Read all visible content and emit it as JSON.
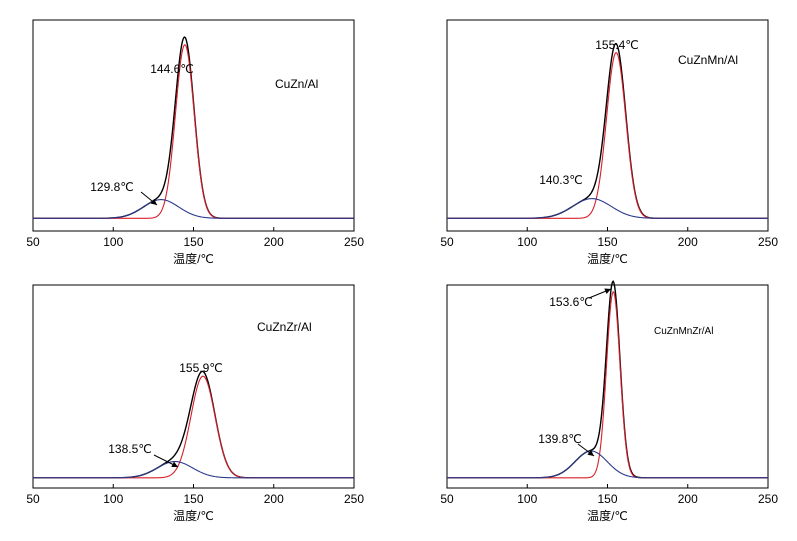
{
  "chart_data": [
    {
      "type": "line",
      "label": "CuZn/Al",
      "xlabel": "温度/℃",
      "xlim": [
        50,
        250
      ],
      "xticks": [
        50,
        100,
        150,
        200,
        250
      ],
      "grid": false,
      "series": [
        {
          "color": "#000000",
          "curve": "sum",
          "peaks": [
            {
              "center": 144.6,
              "height": 0.88,
              "sigma": 5.8
            },
            {
              "center": 129.8,
              "height": 0.095,
              "sigma": 11.0
            }
          ]
        },
        {
          "color": "#d81e2a",
          "curve": "component",
          "peaks": [
            {
              "center": 144.6,
              "height": 0.88,
              "sigma": 5.8
            }
          ]
        },
        {
          "color": "#2b3a8c",
          "curve": "component",
          "peaks": [
            {
              "center": 129.8,
              "height": 0.095,
              "sigma": 11.0
            }
          ]
        }
      ],
      "annotations": [
        {
          "text": "144.6℃",
          "x": 144.6,
          "arrow": false
        },
        {
          "text": "129.8℃",
          "x": 129.8,
          "arrow": true
        }
      ]
    },
    {
      "type": "line",
      "label": "CuZnMn/Al",
      "xlabel": "温度/℃",
      "xlim": [
        50,
        250
      ],
      "xticks": [
        50,
        100,
        150,
        200,
        250
      ],
      "grid": false,
      "series": [
        {
          "color": "#000000",
          "curve": "sum",
          "peaks": [
            {
              "center": 155.4,
              "height": 0.84,
              "sigma": 6.0
            },
            {
              "center": 140.3,
              "height": 0.1,
              "sigma": 12.0
            }
          ]
        },
        {
          "color": "#d81e2a",
          "curve": "component",
          "peaks": [
            {
              "center": 155.4,
              "height": 0.84,
              "sigma": 6.0
            }
          ]
        },
        {
          "color": "#2b3a8c",
          "curve": "component",
          "peaks": [
            {
              "center": 140.3,
              "height": 0.1,
              "sigma": 12.0
            }
          ]
        }
      ],
      "annotations": [
        {
          "text": "155.4℃",
          "x": 155.4,
          "arrow": false
        },
        {
          "text": "140.3℃",
          "x": 140.3,
          "arrow": false
        }
      ]
    },
    {
      "type": "line",
      "label": "CuZnZr/Al",
      "xlabel": "温度/℃",
      "xlim": [
        50,
        250
      ],
      "xticks": [
        50,
        100,
        150,
        200,
        250
      ],
      "grid": false,
      "series": [
        {
          "color": "#000000",
          "curve": "sum",
          "peaks": [
            {
              "center": 155.9,
              "height": 0.53,
              "sigma": 7.5
            },
            {
              "center": 138.5,
              "height": 0.085,
              "sigma": 11.0
            }
          ]
        },
        {
          "color": "#d81e2a",
          "curve": "component",
          "peaks": [
            {
              "center": 155.9,
              "height": 0.53,
              "sigma": 7.5
            }
          ]
        },
        {
          "color": "#2b3a8c",
          "curve": "component",
          "peaks": [
            {
              "center": 138.5,
              "height": 0.085,
              "sigma": 11.0
            }
          ]
        }
      ],
      "annotations": [
        {
          "text": "155.9℃",
          "x": 155.9,
          "arrow": false
        },
        {
          "text": "138.5℃",
          "x": 138.5,
          "arrow": true
        }
      ]
    },
    {
      "type": "line",
      "label": "CuZnMnZr/Al",
      "xlabel": "温度/℃",
      "xlim": [
        50,
        250
      ],
      "xticks": [
        50,
        100,
        150,
        200,
        250
      ],
      "grid": false,
      "series": [
        {
          "color": "#000000",
          "curve": "sum",
          "peaks": [
            {
              "center": 153.6,
              "height": 0.97,
              "sigma": 4.2
            },
            {
              "center": 139.8,
              "height": 0.14,
              "sigma": 10.0
            }
          ]
        },
        {
          "color": "#d81e2a",
          "curve": "component",
          "peaks": [
            {
              "center": 153.6,
              "height": 0.97,
              "sigma": 4.2
            }
          ]
        },
        {
          "color": "#2b3a8c",
          "curve": "component",
          "peaks": [
            {
              "center": 139.8,
              "height": 0.14,
              "sigma": 10.0
            }
          ]
        }
      ],
      "annotations": [
        {
          "text": "153.6℃",
          "x": 153.6,
          "arrow": true
        },
        {
          "text": "139.8℃",
          "x": 139.8,
          "arrow": true
        }
      ]
    }
  ]
}
